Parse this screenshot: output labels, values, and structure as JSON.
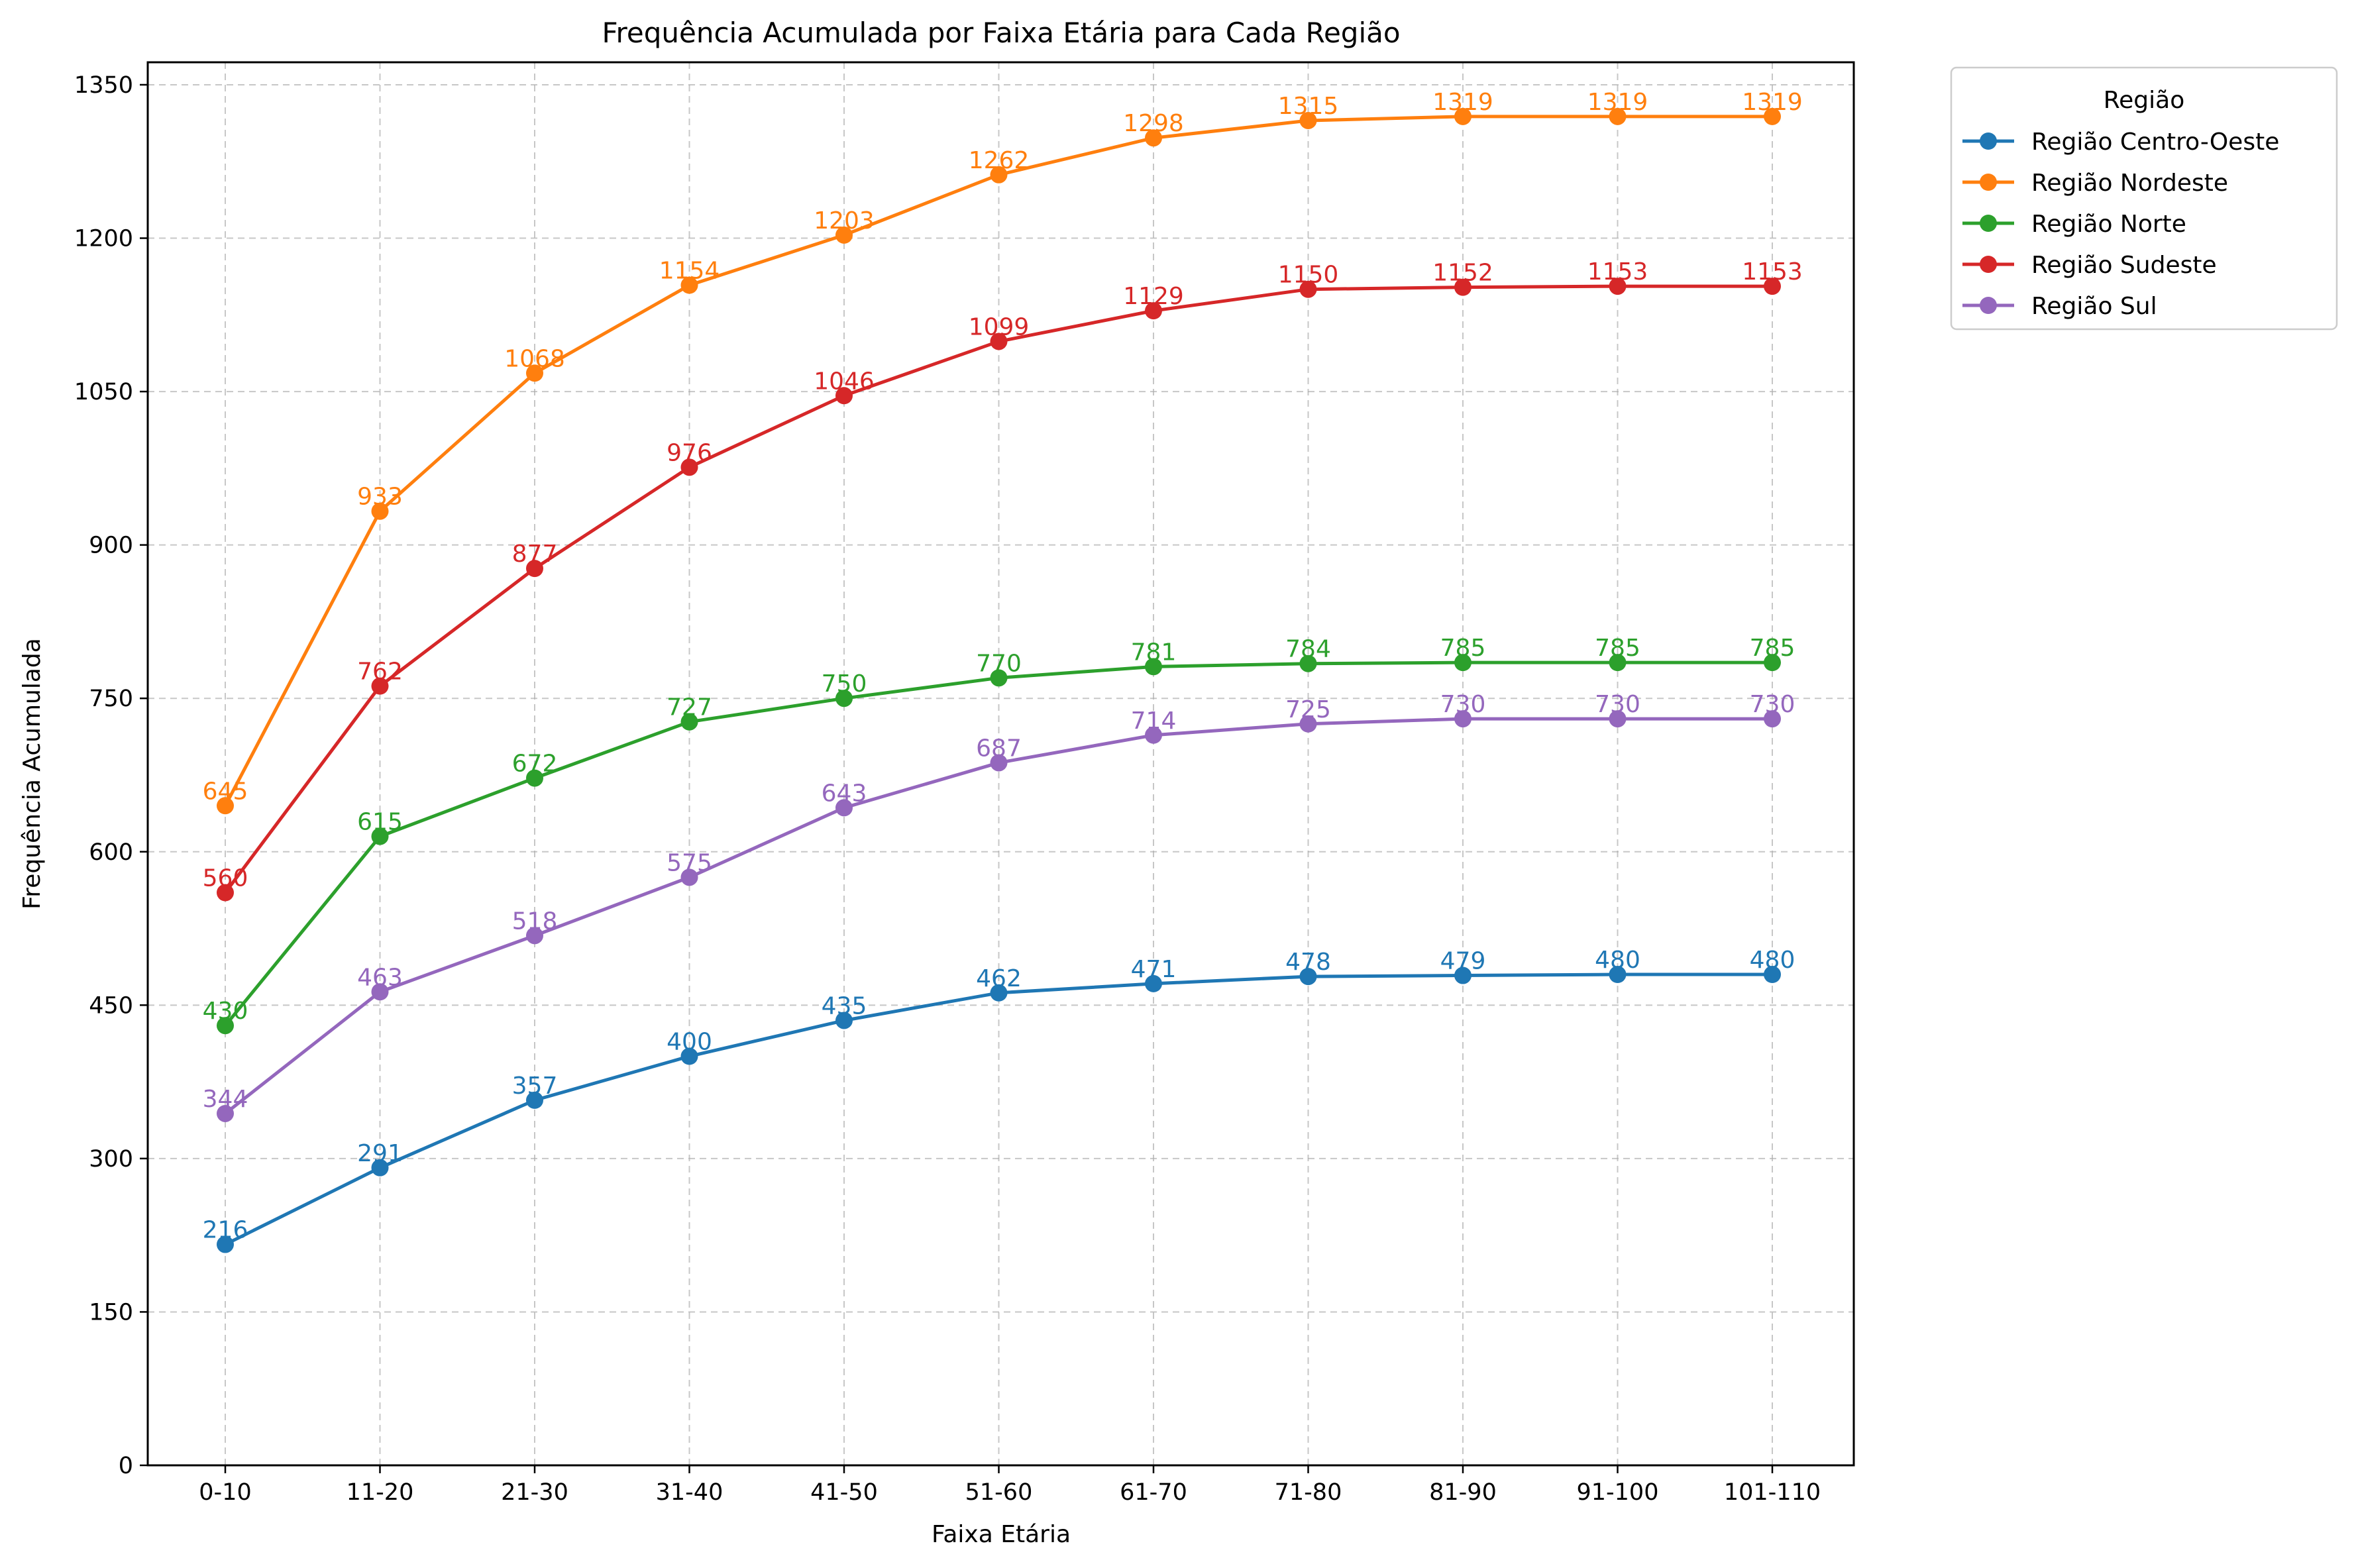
{
  "chart_data": {
    "type": "line",
    "title": "Frequência Acumulada por Faixa Etária para Cada Região",
    "xlabel": "Faixa Etária",
    "ylabel": "Frequência Acumulada",
    "categories": [
      "0-10",
      "11-20",
      "21-30",
      "31-40",
      "41-50",
      "51-60",
      "61-70",
      "71-80",
      "81-90",
      "91-100",
      "101-110"
    ],
    "ylim": [
      0,
      1372
    ],
    "yticks": [
      0,
      150,
      300,
      450,
      600,
      750,
      900,
      1050,
      1200,
      1350
    ],
    "grid": true,
    "legend": {
      "title": "Região",
      "placement": "outside-top-right"
    },
    "series": [
      {
        "name": "Região Centro-Oeste",
        "color": "#1f77b4",
        "values": [
          216,
          291,
          357,
          400,
          435,
          462,
          471,
          478,
          479,
          480,
          480
        ]
      },
      {
        "name": "Região Nordeste",
        "color": "#ff7f0e",
        "values": [
          645,
          933,
          1068,
          1154,
          1203,
          1262,
          1298,
          1315,
          1319,
          1319,
          1319
        ]
      },
      {
        "name": "Região Norte",
        "color": "#2ca02c",
        "values": [
          430,
          615,
          672,
          727,
          750,
          770,
          781,
          784,
          785,
          785,
          785
        ]
      },
      {
        "name": "Região Sudeste",
        "color": "#d62728",
        "values": [
          560,
          762,
          877,
          976,
          1046,
          1099,
          1129,
          1150,
          1152,
          1153,
          1153
        ]
      },
      {
        "name": "Região Sul",
        "color": "#9467bd",
        "values": [
          344,
          463,
          518,
          575,
          643,
          687,
          714,
          725,
          730,
          730,
          730
        ]
      }
    ]
  }
}
